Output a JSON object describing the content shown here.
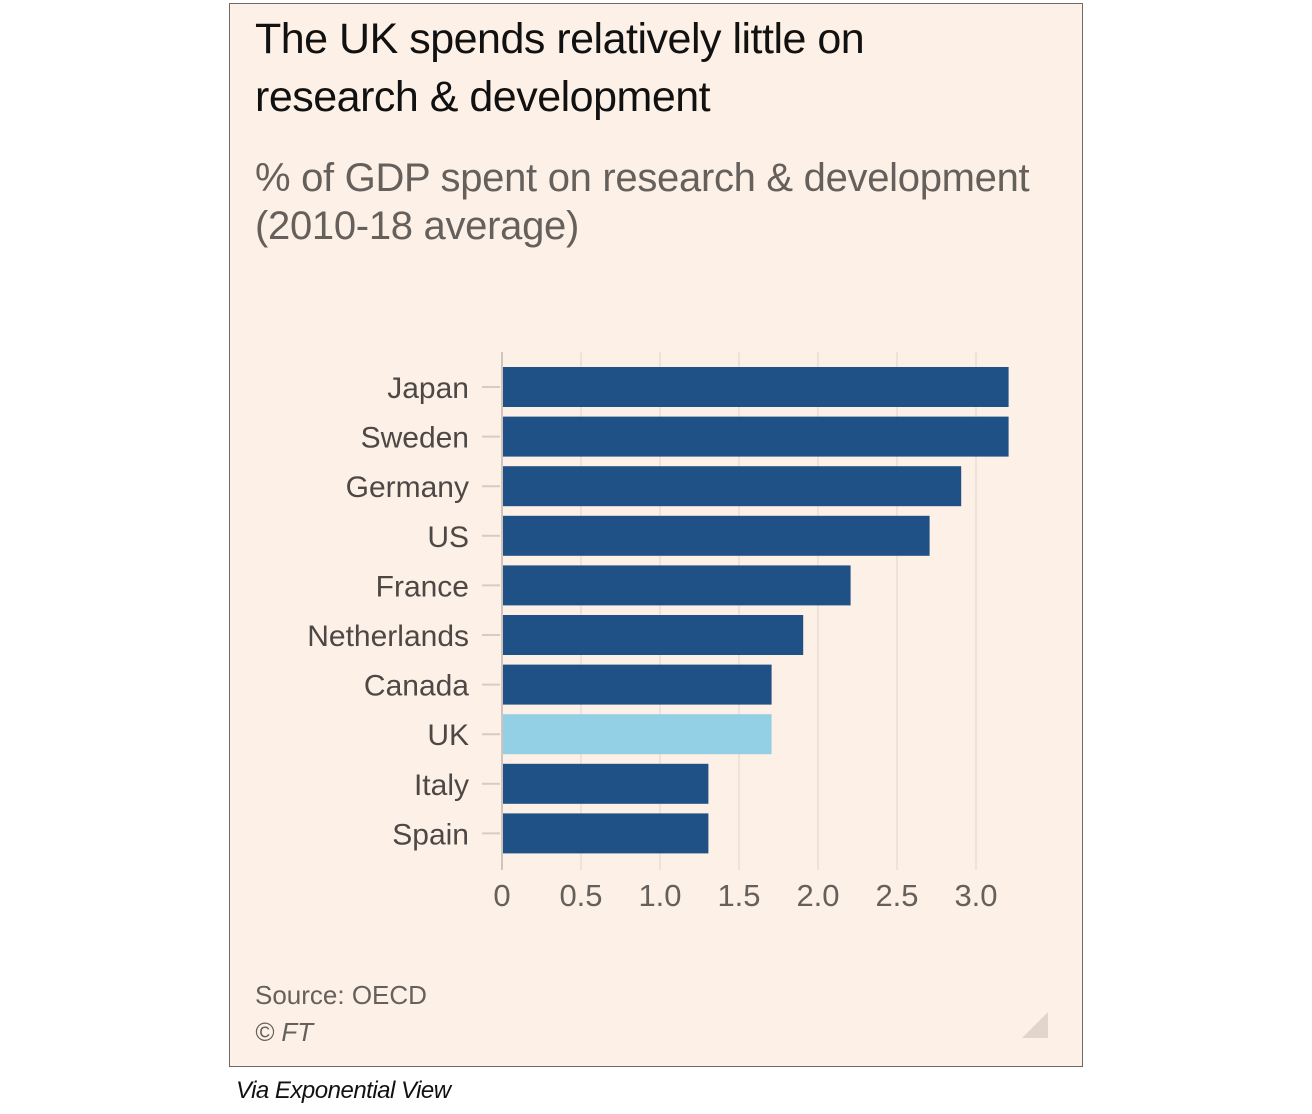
{
  "chart_data": {
    "type": "bar",
    "orientation": "horizontal",
    "title": "The UK spends relatively little on research & development",
    "title_lines": [
      "The UK spends relatively little on",
      "research & development"
    ],
    "subtitle_lines": [
      "% of GDP spent on research & development",
      "(2010-18 average)"
    ],
    "categories": [
      "Japan",
      "Sweden",
      "Germany",
      "US",
      "France",
      "Netherlands",
      "Canada",
      "UK",
      "Italy",
      "Spain"
    ],
    "values": [
      3.2,
      3.2,
      2.9,
      2.7,
      2.2,
      1.9,
      1.7,
      1.7,
      1.3,
      1.3
    ],
    "highlight": "UK",
    "xlim": [
      0,
      3.2
    ],
    "xticks": [
      0,
      0.5,
      1.0,
      1.5,
      2.0,
      2.5,
      3.0
    ],
    "xtick_labels": [
      "0",
      "0.5",
      "1.0",
      "1.5",
      "2.0",
      "2.5",
      "3.0"
    ],
    "xlabel": "",
    "ylabel": "",
    "grid": true,
    "colors": {
      "bar": "#1f5186",
      "highlight": "#94d0e5",
      "grid": "#eaddd5",
      "background": "#fdf1e7"
    }
  },
  "footer": {
    "source": "Source: OECD",
    "copyright": "© FT"
  },
  "caption": "Via Exponential View"
}
